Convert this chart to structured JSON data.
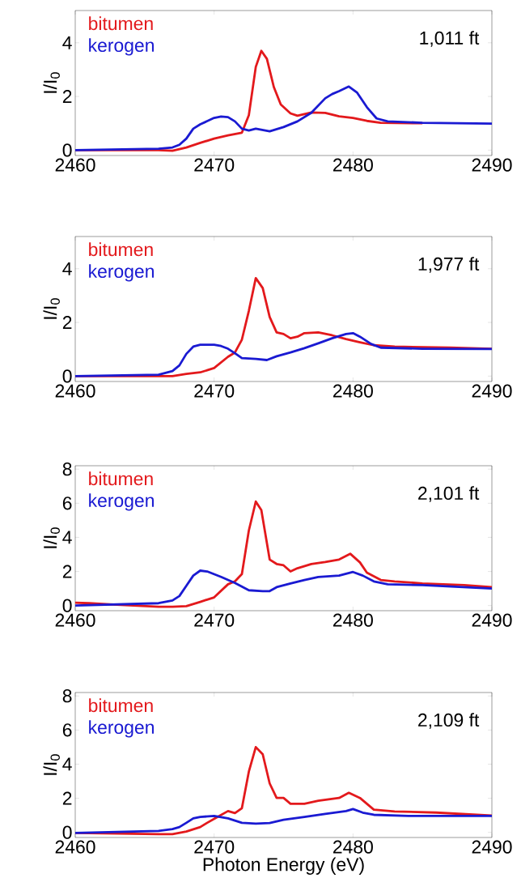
{
  "chart_data": [
    {
      "type": "line",
      "ylabel": "I/I$_{0}$",
      "legend": "top left",
      "annotations": [
        "1,011 ft"
      ],
      "xlim": [
        2460,
        2490
      ],
      "xticks": [
        2460,
        2470,
        2480,
        2490
      ],
      "ylim": [
        -0.2,
        5.2
      ],
      "yticks": [
        0,
        2,
        4
      ],
      "series": [
        {
          "name": "bitumen",
          "color": "#e3191c",
          "x": [
            2460,
            2463,
            2466,
            2467,
            2468,
            2469,
            2470,
            2471,
            2472,
            2472.5,
            2473,
            2473.4,
            2473.8,
            2474.3,
            2474.8,
            2475.5,
            2476,
            2477,
            2478,
            2479,
            2480,
            2481,
            2482,
            2485
          ],
          "values": [
            0,
            0,
            0,
            -0.02,
            0.1,
            0.27,
            0.43,
            0.55,
            0.65,
            1.3,
            3.1,
            3.7,
            3.4,
            2.35,
            1.7,
            1.37,
            1.28,
            1.4,
            1.39,
            1.26,
            1.2,
            1.09,
            1.02,
            1.0
          ]
        },
        {
          "name": "kerogen",
          "color": "#1a1ad2",
          "x": [
            2460,
            2466,
            2467,
            2467.5,
            2468,
            2468.5,
            2469,
            2470,
            2470.5,
            2471,
            2471.5,
            2472,
            2472.5,
            2473,
            2474,
            2475,
            2476,
            2477,
            2478,
            2478.5,
            2479,
            2479.7,
            2480.3,
            2481,
            2481.7,
            2482.5,
            2485,
            2490
          ],
          "values": [
            0,
            0.05,
            0.1,
            0.2,
            0.43,
            0.8,
            0.96,
            1.2,
            1.25,
            1.23,
            1.07,
            0.8,
            0.73,
            0.8,
            0.7,
            0.86,
            1.07,
            1.39,
            1.93,
            2.09,
            2.2,
            2.37,
            2.14,
            1.6,
            1.18,
            1.07,
            1.02,
            0.99
          ]
        }
      ]
    },
    {
      "type": "line",
      "ylabel": "I/I$_{0}$",
      "legend": "top left",
      "annotations": [
        "1,977 ft"
      ],
      "xlim": [
        2460,
        2490
      ],
      "xticks": [
        2460,
        2470,
        2480,
        2490
      ],
      "ylim": [
        -0.2,
        5.2
      ],
      "yticks": [
        0,
        2,
        4
      ],
      "series": [
        {
          "name": "bitumen",
          "color": "#e3191c",
          "x": [
            2460,
            2464,
            2467,
            2468,
            2469,
            2470,
            2471,
            2471.5,
            2472,
            2472.5,
            2473,
            2473.5,
            2474,
            2474.5,
            2475,
            2475.5,
            2476,
            2476.5,
            2477.5,
            2478.5,
            2479.5,
            2480.5,
            2481.5,
            2483,
            2487,
            2490
          ],
          "values": [
            0,
            0,
            0,
            0.08,
            0.14,
            0.3,
            0.72,
            0.88,
            1.36,
            2.43,
            3.65,
            3.28,
            2.2,
            1.63,
            1.57,
            1.41,
            1.47,
            1.6,
            1.63,
            1.52,
            1.38,
            1.26,
            1.15,
            1.1,
            1.06,
            1.02
          ]
        },
        {
          "name": "kerogen",
          "color": "#1a1ad2",
          "x": [
            2460,
            2466,
            2467,
            2467.5,
            2468,
            2468.5,
            2469,
            2470,
            2470.5,
            2471,
            2471.5,
            2472,
            2473,
            2473.8,
            2474.5,
            2475.5,
            2476.5,
            2477.5,
            2478.5,
            2479.5,
            2480,
            2480.5,
            2481.3,
            2482,
            2485,
            2490
          ],
          "values": [
            0,
            0.05,
            0.19,
            0.4,
            0.83,
            1.1,
            1.17,
            1.17,
            1.12,
            1.02,
            0.85,
            0.67,
            0.64,
            0.6,
            0.74,
            0.88,
            1.04,
            1.22,
            1.41,
            1.57,
            1.6,
            1.47,
            1.2,
            1.06,
            1.02,
            1.01
          ]
        }
      ]
    },
    {
      "type": "line",
      "ylabel": "I/I$_{0}$",
      "legend": "top left",
      "annotations": [
        "2,101 ft"
      ],
      "xlim": [
        2460,
        2490
      ],
      "xticks": [
        2460,
        2470,
        2480,
        2490
      ],
      "ylim": [
        -0.3,
        8.2
      ],
      "yticks": [
        0,
        2,
        4,
        6,
        8
      ],
      "series": [
        {
          "name": "bitumen",
          "color": "#e3191c",
          "x": [
            2460,
            2461,
            2463,
            2466,
            2467,
            2468,
            2469,
            2470,
            2471,
            2471.5,
            2472,
            2472.5,
            2473,
            2473.4,
            2474,
            2474.5,
            2475,
            2475.5,
            2476,
            2477,
            2478,
            2479,
            2479.8,
            2480.5,
            2481,
            2482,
            2483,
            2485,
            2488,
            2490
          ],
          "values": [
            0.17,
            0.14,
            0.05,
            -0.07,
            -0.07,
            -0.03,
            0.22,
            0.48,
            1.25,
            1.42,
            1.85,
            4.4,
            6.1,
            5.6,
            2.7,
            2.44,
            2.36,
            2.0,
            2.19,
            2.44,
            2.56,
            2.7,
            3.04,
            2.53,
            1.93,
            1.5,
            1.42,
            1.3,
            1.2,
            1.08
          ]
        },
        {
          "name": "kerogen",
          "color": "#1a1ad2",
          "x": [
            2460,
            2466,
            2467,
            2467.5,
            2468,
            2468.5,
            2469,
            2469.5,
            2470.5,
            2471.5,
            2472.5,
            2473.5,
            2474,
            2474.5,
            2475.5,
            2476.5,
            2477.5,
            2479,
            2480,
            2480.7,
            2481.5,
            2482.5,
            2485,
            2490
          ],
          "values": [
            0,
            0.14,
            0.3,
            0.56,
            1.16,
            1.76,
            2.05,
            2.0,
            1.68,
            1.33,
            0.9,
            0.85,
            0.85,
            1.08,
            1.3,
            1.5,
            1.68,
            1.76,
            1.97,
            1.76,
            1.42,
            1.25,
            1.2,
            1.0
          ]
        }
      ]
    },
    {
      "type": "line",
      "ylabel": "I/I$_{0}$",
      "xlabel": "Photon Energy (eV)",
      "legend": "top left",
      "annotations": [
        "2,109 ft"
      ],
      "xlim": [
        2460,
        2490
      ],
      "xticks": [
        2460,
        2470,
        2480,
        2490
      ],
      "ylim": [
        -0.3,
        8.2
      ],
      "yticks": [
        0,
        2,
        4,
        6,
        8
      ],
      "series": [
        {
          "name": "bitumen",
          "color": "#e3191c",
          "x": [
            2460,
            2466,
            2467,
            2468,
            2469,
            2469.5,
            2470,
            2471,
            2471.5,
            2472,
            2472.5,
            2473,
            2473.5,
            2474,
            2474.5,
            2475,
            2475.5,
            2476.5,
            2477.5,
            2479,
            2479.7,
            2480.5,
            2481.5,
            2483,
            2486,
            2490
          ],
          "values": [
            -0.03,
            -0.1,
            -0.1,
            0.05,
            0.31,
            0.56,
            0.79,
            1.25,
            1.13,
            1.42,
            3.56,
            5.0,
            4.58,
            2.87,
            2.02,
            2.02,
            1.68,
            1.68,
            1.85,
            2.02,
            2.32,
            2.02,
            1.33,
            1.23,
            1.16,
            0.99
          ]
        },
        {
          "name": "kerogen",
          "color": "#1a1ad2",
          "x": [
            2460,
            2466,
            2467,
            2467.5,
            2468,
            2468.5,
            2469,
            2470,
            2471,
            2472,
            2473,
            2474,
            2475,
            2476.5,
            2478,
            2479.5,
            2480,
            2480.7,
            2481.5,
            2484,
            2490
          ],
          "values": [
            -0.03,
            0.09,
            0.19,
            0.31,
            0.56,
            0.82,
            0.91,
            0.96,
            0.82,
            0.56,
            0.51,
            0.55,
            0.74,
            0.91,
            1.08,
            1.25,
            1.37,
            1.16,
            1.03,
            0.96,
            0.96
          ]
        }
      ]
    }
  ]
}
